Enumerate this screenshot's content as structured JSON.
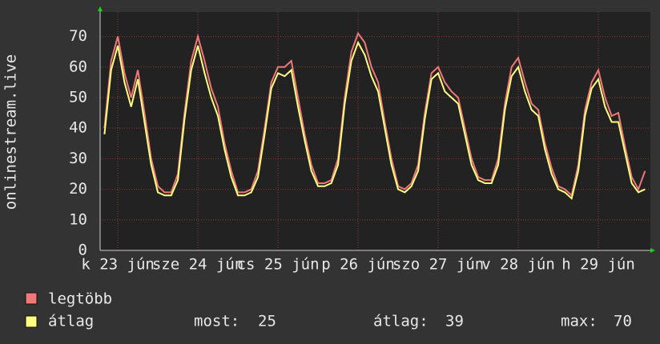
{
  "chart_data": {
    "type": "line",
    "y_label": "onlinestream.live",
    "x": [
      8,
      10,
      12,
      14,
      16,
      18,
      20,
      22,
      24,
      26,
      28,
      30,
      32,
      34,
      36,
      38,
      40,
      42,
      44,
      46,
      48,
      50,
      52,
      54,
      56,
      58,
      60,
      62,
      64,
      66,
      68,
      70,
      72,
      74,
      76,
      78,
      80,
      82,
      84,
      86,
      88,
      90,
      92,
      94,
      96,
      98,
      100,
      102,
      104,
      106,
      108,
      110,
      112,
      114,
      116,
      118,
      120,
      122,
      124,
      126,
      128,
      130,
      132,
      134,
      136,
      138,
      140,
      142,
      144,
      146,
      148,
      150,
      152,
      154,
      156,
      158,
      160,
      162,
      164,
      166,
      168,
      170
    ],
    "series": [
      {
        "name": "legtöbb",
        "color": "#f07878",
        "values": [
          40,
          62,
          70,
          58,
          50,
          59,
          45,
          30,
          21,
          19,
          19,
          25,
          45,
          62,
          70,
          62,
          53,
          47,
          35,
          26,
          19,
          19,
          20,
          26,
          40,
          55,
          60,
          60,
          62,
          50,
          38,
          28,
          22,
          22,
          23,
          30,
          50,
          65,
          71,
          68,
          60,
          55,
          42,
          30,
          21,
          20,
          22,
          28,
          45,
          58,
          60,
          55,
          52,
          50,
          40,
          30,
          24,
          23,
          23,
          30,
          48,
          60,
          63,
          55,
          48,
          46,
          35,
          27,
          21,
          20,
          18,
          28,
          46,
          55,
          59,
          50,
          44,
          45,
          34,
          24,
          20,
          26
        ]
      },
      {
        "name": "átlag",
        "color": "#ffff80",
        "values": [
          38,
          59,
          67,
          55,
          47,
          56,
          42,
          28,
          19,
          18,
          18,
          23,
          43,
          59,
          67,
          58,
          50,
          44,
          33,
          24,
          18,
          18,
          19,
          24,
          38,
          53,
          58,
          57,
          59,
          47,
          36,
          26,
          21,
          21,
          22,
          28,
          48,
          62,
          68,
          64,
          57,
          52,
          40,
          28,
          20,
          19,
          21,
          26,
          43,
          56,
          58,
          52,
          50,
          48,
          38,
          28,
          23,
          22,
          22,
          28,
          46,
          57,
          60,
          52,
          46,
          44,
          33,
          25,
          20,
          19,
          17,
          26,
          44,
          53,
          56,
          47,
          42,
          42,
          32,
          22,
          19,
          20
        ]
      }
    ],
    "xlim": [
      6.7,
      171.6
    ],
    "xticks": [
      {
        "value": 12,
        "label": "k 23 jún"
      },
      {
        "value": 36,
        "label": "sze 24 jún"
      },
      {
        "value": 60,
        "label": "cs 25 jún"
      },
      {
        "value": 84,
        "label": "p 26 jún"
      },
      {
        "value": 108,
        "label": "szo 27 jún"
      },
      {
        "value": 132,
        "label": "v 28 jún"
      },
      {
        "value": 156,
        "label": "h 29 jún"
      }
    ],
    "ylim": [
      0,
      78
    ],
    "yticks": [
      0,
      10,
      20,
      30,
      40,
      50,
      60,
      70
    ],
    "grid": true,
    "stats": [
      {
        "label": "most:",
        "value": 25
      },
      {
        "label": "átlag:",
        "value": 39
      },
      {
        "label": "max:",
        "value": 70
      }
    ]
  }
}
